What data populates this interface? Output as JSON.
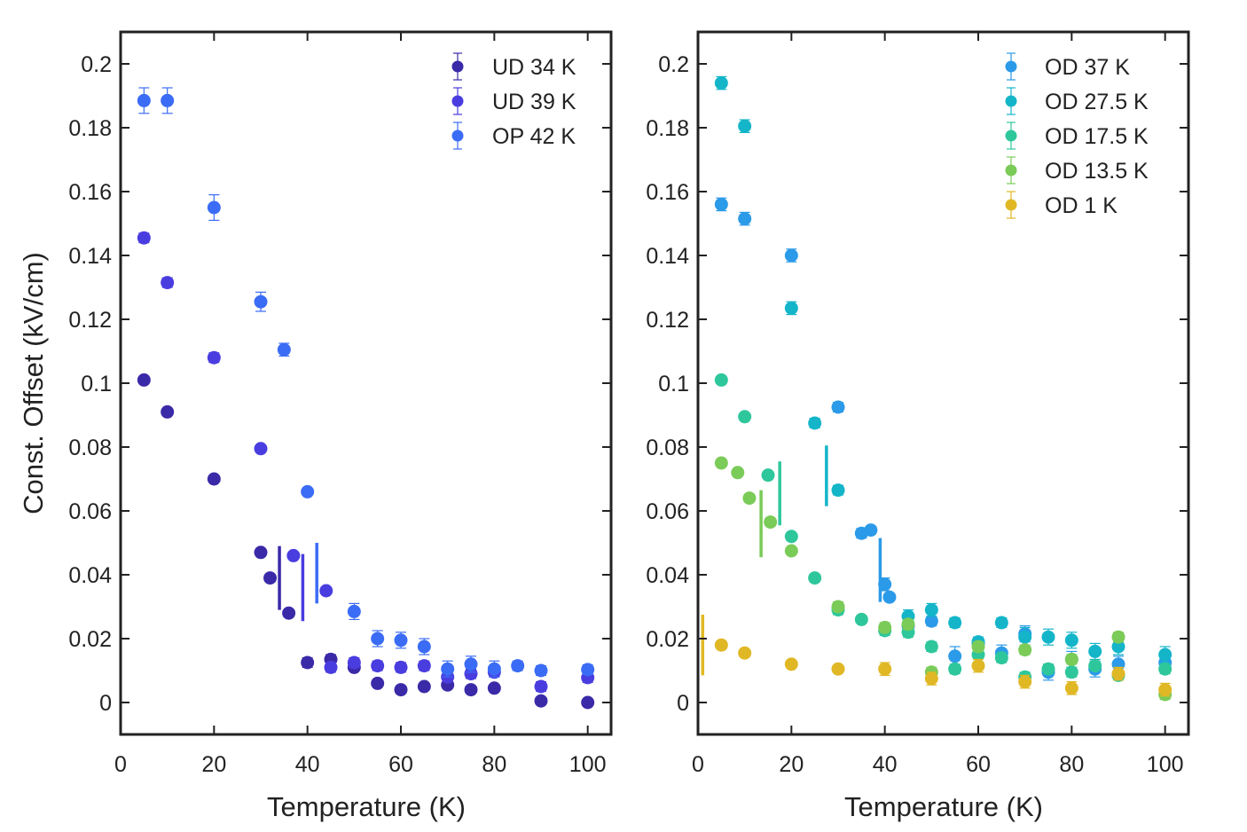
{
  "figure": {
    "panels": [
      "left",
      "right"
    ]
  },
  "chart_data": [
    {
      "type": "scatter",
      "title": "",
      "xlabel": "Temperature (K)",
      "ylabel": "Const. Offset (kV/cm)",
      "xlim": [
        0,
        105
      ],
      "ylim": [
        -0.01,
        0.21
      ],
      "xticks": [
        0,
        20,
        40,
        60,
        80,
        100
      ],
      "xtick_labels": [
        "0",
        "20",
        "40",
        "60",
        "80",
        "100"
      ],
      "yticks": [
        0,
        0.02,
        0.04,
        0.06,
        0.08,
        0.1,
        0.12,
        0.14,
        0.16,
        0.18,
        0.2
      ],
      "ytick_labels": [
        "0",
        "0.02",
        "0.04",
        "0.06",
        "0.08",
        "0.1",
        "0.12",
        "0.14",
        "0.16",
        "0.18",
        "0.2"
      ],
      "grid": false,
      "legend_position": "top-right",
      "series": [
        {
          "name": "UD 34 K",
          "color": "#3a2aa8",
          "points": [
            {
              "x": 5,
              "y": 0.101,
              "err": 0.001
            },
            {
              "x": 10,
              "y": 0.091,
              "err": 0.001
            },
            {
              "x": 20,
              "y": 0.07,
              "err": 0.001
            },
            {
              "x": 30,
              "y": 0.047,
              "err": 0.001
            },
            {
              "x": 32,
              "y": 0.039,
              "err": 0.001
            },
            {
              "x": 36,
              "y": 0.028,
              "err": 0.001
            },
            {
              "x": 40,
              "y": 0.0125,
              "err": 0.0015
            },
            {
              "x": 45,
              "y": 0.0135,
              "err": 0.0015
            },
            {
              "x": 50,
              "y": 0.011,
              "err": 0.001
            },
            {
              "x": 55,
              "y": 0.006,
              "err": 0.001
            },
            {
              "x": 60,
              "y": 0.004,
              "err": 0.001
            },
            {
              "x": 65,
              "y": 0.005,
              "err": 0.001
            },
            {
              "x": 70,
              "y": 0.0055,
              "err": 0.001
            },
            {
              "x": 75,
              "y": 0.004,
              "err": 0.001
            },
            {
              "x": 80,
              "y": 0.0045,
              "err": 0.001
            },
            {
              "x": 90,
              "y": 0.0005,
              "err": 0.001
            },
            {
              "x": 100,
              "y": 0.0,
              "err": 0.001
            }
          ],
          "tc_bar": {
            "x": 34,
            "y": 0.039,
            "err": 0.01
          }
        },
        {
          "name": "UD 39 K",
          "color": "#4a3de0",
          "points": [
            {
              "x": 5,
              "y": 0.1455,
              "err": 0.0015
            },
            {
              "x": 10,
              "y": 0.1315,
              "err": 0.0015
            },
            {
              "x": 20,
              "y": 0.108,
              "err": 0.0015
            },
            {
              "x": 30,
              "y": 0.0795,
              "err": 0.001
            },
            {
              "x": 37,
              "y": 0.046,
              "err": 0.001
            },
            {
              "x": 44,
              "y": 0.035,
              "err": 0.001
            },
            {
              "x": 45,
              "y": 0.011,
              "err": 0.0015
            },
            {
              "x": 50,
              "y": 0.0125,
              "err": 0.0015
            },
            {
              "x": 55,
              "y": 0.0115,
              "err": 0.0015
            },
            {
              "x": 60,
              "y": 0.011,
              "err": 0.0015
            },
            {
              "x": 65,
              "y": 0.0115,
              "err": 0.0015
            },
            {
              "x": 70,
              "y": 0.008,
              "err": 0.0015
            },
            {
              "x": 75,
              "y": 0.009,
              "err": 0.0015
            },
            {
              "x": 80,
              "y": 0.0095,
              "err": 0.0015
            },
            {
              "x": 90,
              "y": 0.005,
              "err": 0.0015
            },
            {
              "x": 100,
              "y": 0.0078,
              "err": 0.0015
            }
          ],
          "tc_bar": {
            "x": 39,
            "y": 0.036,
            "err": 0.0105
          }
        },
        {
          "name": "OP 42 K",
          "color": "#3b6cf5",
          "points": [
            {
              "x": 5,
              "y": 0.1885,
              "err": 0.004
            },
            {
              "x": 10,
              "y": 0.1885,
              "err": 0.004
            },
            {
              "x": 20,
              "y": 0.155,
              "err": 0.004
            },
            {
              "x": 30,
              "y": 0.1255,
              "err": 0.003
            },
            {
              "x": 35,
              "y": 0.1105,
              "err": 0.002
            },
            {
              "x": 40,
              "y": 0.066,
              "err": 0.001
            },
            {
              "x": 50,
              "y": 0.0285,
              "err": 0.0025
            },
            {
              "x": 55,
              "y": 0.02,
              "err": 0.0025
            },
            {
              "x": 60,
              "y": 0.0195,
              "err": 0.0025
            },
            {
              "x": 65,
              "y": 0.0175,
              "err": 0.0025
            },
            {
              "x": 70,
              "y": 0.0105,
              "err": 0.0025
            },
            {
              "x": 75,
              "y": 0.012,
              "err": 0.0025
            },
            {
              "x": 80,
              "y": 0.0105,
              "err": 0.0025
            },
            {
              "x": 85,
              "y": 0.0115,
              "err": 0.0015
            },
            {
              "x": 90,
              "y": 0.01,
              "err": 0.0015
            },
            {
              "x": 100,
              "y": 0.0103,
              "err": 0.0015
            }
          ],
          "tc_bar": {
            "x": 42,
            "y": 0.0405,
            "err": 0.0095
          }
        }
      ]
    },
    {
      "type": "scatter",
      "title": "",
      "xlabel": "Temperature (K)",
      "ylabel": "",
      "xlim": [
        0,
        105
      ],
      "ylim": [
        -0.01,
        0.21
      ],
      "xticks": [
        0,
        20,
        40,
        60,
        80,
        100
      ],
      "xtick_labels": [
        "0",
        "20",
        "40",
        "60",
        "80",
        "100"
      ],
      "yticks": [
        0,
        0.02,
        0.04,
        0.06,
        0.08,
        0.1,
        0.12,
        0.14,
        0.16,
        0.18,
        0.2
      ],
      "ytick_labels": [
        "0",
        "0.02",
        "0.04",
        "0.06",
        "0.08",
        "0.1",
        "0.12",
        "0.14",
        "0.16",
        "0.18",
        "0.2"
      ],
      "grid": false,
      "legend_position": "top-right",
      "series": [
        {
          "name": "OD 37 K",
          "color": "#2b9ae8",
          "points": [
            {
              "x": 5,
              "y": 0.156,
              "err": 0.002
            },
            {
              "x": 10,
              "y": 0.1515,
              "err": 0.002
            },
            {
              "x": 20,
              "y": 0.14,
              "err": 0.002
            },
            {
              "x": 30,
              "y": 0.0925,
              "err": 0.0015
            },
            {
              "x": 35,
              "y": 0.053,
              "err": 0.0015
            },
            {
              "x": 37,
              "y": 0.054,
              "err": 0.001
            },
            {
              "x": 40,
              "y": 0.037,
              "err": 0.002
            },
            {
              "x": 41,
              "y": 0.033,
              "err": 0.001
            },
            {
              "x": 45,
              "y": 0.024,
              "err": 0.002
            },
            {
              "x": 50,
              "y": 0.0255,
              "err": 0.0015
            },
            {
              "x": 55,
              "y": 0.0145,
              "err": 0.003
            },
            {
              "x": 60,
              "y": 0.0185,
              "err": 0.002
            },
            {
              "x": 65,
              "y": 0.0155,
              "err": 0.0025
            },
            {
              "x": 70,
              "y": 0.0215,
              "err": 0.0025
            },
            {
              "x": 75,
              "y": 0.0095,
              "err": 0.0025
            },
            {
              "x": 80,
              "y": 0.0135,
              "err": 0.0025
            },
            {
              "x": 85,
              "y": 0.0105,
              "err": 0.0025
            },
            {
              "x": 90,
              "y": 0.012,
              "err": 0.0025
            },
            {
              "x": 100,
              "y": 0.0125,
              "err": 0.002
            }
          ],
          "tc_bar": {
            "x": 39,
            "y": 0.0415,
            "err": 0.01
          }
        },
        {
          "name": "OD 27.5 K",
          "color": "#14b5c9",
          "points": [
            {
              "x": 5,
              "y": 0.194,
              "err": 0.002
            },
            {
              "x": 10,
              "y": 0.1805,
              "err": 0.002
            },
            {
              "x": 20,
              "y": 0.1235,
              "err": 0.002
            },
            {
              "x": 25,
              "y": 0.0875,
              "err": 0.0015
            },
            {
              "x": 30,
              "y": 0.0665,
              "err": 0.0015
            },
            {
              "x": 45,
              "y": 0.027,
              "err": 0.002
            },
            {
              "x": 50,
              "y": 0.029,
              "err": 0.002
            },
            {
              "x": 55,
              "y": 0.025,
              "err": 0.0015
            },
            {
              "x": 60,
              "y": 0.019,
              "err": 0.0015
            },
            {
              "x": 65,
              "y": 0.025,
              "err": 0.0015
            },
            {
              "x": 70,
              "y": 0.0205,
              "err": 0.003
            },
            {
              "x": 75,
              "y": 0.0205,
              "err": 0.0025
            },
            {
              "x": 80,
              "y": 0.0195,
              "err": 0.0025
            },
            {
              "x": 85,
              "y": 0.016,
              "err": 0.0025
            },
            {
              "x": 90,
              "y": 0.0175,
              "err": 0.0025
            },
            {
              "x": 100,
              "y": 0.015,
              "err": 0.0025
            }
          ],
          "tc_bar": {
            "x": 27.5,
            "y": 0.071,
            "err": 0.0095
          }
        },
        {
          "name": "OD 17.5 K",
          "color": "#2ec79c",
          "points": [
            {
              "x": 5,
              "y": 0.101,
              "err": 0.001
            },
            {
              "x": 10,
              "y": 0.0895,
              "err": 0.001
            },
            {
              "x": 15,
              "y": 0.0712,
              "err": 0.001
            },
            {
              "x": 20,
              "y": 0.052,
              "err": 0.001
            },
            {
              "x": 25,
              "y": 0.039,
              "err": 0.001
            },
            {
              "x": 30,
              "y": 0.029,
              "err": 0.0015
            },
            {
              "x": 35,
              "y": 0.026,
              "err": 0.001
            },
            {
              "x": 40,
              "y": 0.0225,
              "err": 0.0015
            },
            {
              "x": 45,
              "y": 0.022,
              "err": 0.0015
            },
            {
              "x": 50,
              "y": 0.0175,
              "err": 0.0015
            },
            {
              "x": 55,
              "y": 0.0105,
              "err": 0.0015
            },
            {
              "x": 60,
              "y": 0.015,
              "err": 0.0015
            },
            {
              "x": 65,
              "y": 0.014,
              "err": 0.0015
            },
            {
              "x": 70,
              "y": 0.008,
              "err": 0.0015
            },
            {
              "x": 75,
              "y": 0.0105,
              "err": 0.0015
            },
            {
              "x": 80,
              "y": 0.0095,
              "err": 0.0015
            },
            {
              "x": 85,
              "y": 0.0115,
              "err": 0.0015
            },
            {
              "x": 90,
              "y": 0.0085,
              "err": 0.0015
            },
            {
              "x": 100,
              "y": 0.0105,
              "err": 0.0015
            }
          ],
          "tc_bar": {
            "x": 17.5,
            "y": 0.0655,
            "err": 0.01
          }
        },
        {
          "name": "OD 13.5 K",
          "color": "#7acb58",
          "points": [
            {
              "x": 5,
              "y": 0.075,
              "err": 0.001
            },
            {
              "x": 8.5,
              "y": 0.072,
              "err": 0.001
            },
            {
              "x": 11,
              "y": 0.064,
              "err": 0.001
            },
            {
              "x": 15.5,
              "y": 0.0565,
              "err": 0.001
            },
            {
              "x": 20,
              "y": 0.0475,
              "err": 0.001
            },
            {
              "x": 30,
              "y": 0.03,
              "err": 0.0015
            },
            {
              "x": 40,
              "y": 0.0235,
              "err": 0.0015
            },
            {
              "x": 45,
              "y": 0.0245,
              "err": 0.0015
            },
            {
              "x": 50,
              "y": 0.0095,
              "err": 0.0015
            },
            {
              "x": 60,
              "y": 0.0175,
              "err": 0.0015
            },
            {
              "x": 70,
              "y": 0.0165,
              "err": 0.0015
            },
            {
              "x": 80,
              "y": 0.0135,
              "err": 0.0015
            },
            {
              "x": 90,
              "y": 0.0205,
              "err": 0.0015
            },
            {
              "x": 100,
              "y": 0.0025,
              "err": 0.0015
            }
          ],
          "tc_bar": {
            "x": 13.5,
            "y": 0.056,
            "err": 0.0105
          }
        },
        {
          "name": "OD 1 K",
          "color": "#e0b825",
          "points": [
            {
              "x": 5,
              "y": 0.018,
              "err": 0.001
            },
            {
              "x": 10,
              "y": 0.0155,
              "err": 0.001
            },
            {
              "x": 20,
              "y": 0.012,
              "err": 0.001
            },
            {
              "x": 30,
              "y": 0.0105,
              "err": 0.001
            },
            {
              "x": 40,
              "y": 0.0105,
              "err": 0.002
            },
            {
              "x": 50,
              "y": 0.0075,
              "err": 0.002
            },
            {
              "x": 60,
              "y": 0.0115,
              "err": 0.002
            },
            {
              "x": 70,
              "y": 0.0065,
              "err": 0.002
            },
            {
              "x": 80,
              "y": 0.0045,
              "err": 0.002
            },
            {
              "x": 90,
              "y": 0.009,
              "err": 0.002
            },
            {
              "x": 100,
              "y": 0.004,
              "err": 0.002
            }
          ],
          "tc_bar": {
            "x": 1,
            "y": 0.018,
            "err": 0.0095
          }
        }
      ]
    }
  ]
}
